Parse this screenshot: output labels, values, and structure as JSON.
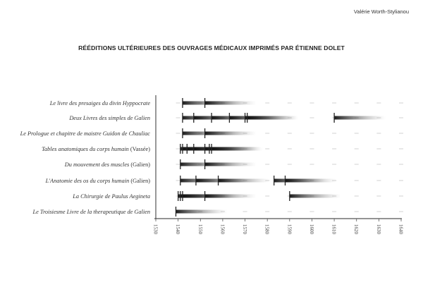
{
  "header": {
    "author": "Valérie Worth-Stylianou"
  },
  "chart_data": {
    "type": "timeline",
    "title": "RÉÉDITIONS ULTÉRIEURES DES OUVRAGES MÉDICAUX IMPRIMÉS PAR ÉTIENNE DOLET",
    "xlim": [
      1530,
      1640
    ],
    "x_ticks": [
      1530,
      1540,
      1550,
      1560,
      1570,
      1580,
      1590,
      1600,
      1610,
      1620,
      1630,
      1640
    ],
    "grid": "dashed row guides at each decade",
    "colors": {
      "mark": "#222222",
      "fade": "#ffffff",
      "guide": "#d0d0d0",
      "axis": "#555555"
    },
    "rows": [
      {
        "title": "Le livre des presaiges du divin Hyppocrate",
        "note": "",
        "editions": [
          1542,
          1552
        ]
      },
      {
        "title": "Deux Livres des simples de Galien",
        "note": "",
        "editions": [
          1542,
          1547,
          1555,
          1563,
          1570,
          1571,
          1610
        ]
      },
      {
        "title": "Le Prologue et chapitre de maistre Guidon de Chauliac",
        "note": "",
        "editions": [
          1542,
          1552
        ]
      },
      {
        "title": "Tables anatomiques du corps humain",
        "note": "(Vassée)",
        "editions": [
          1541,
          1542,
          1544,
          1547,
          1552,
          1554,
          1555
        ]
      },
      {
        "title": "Du mouvement des muscles",
        "note": "(Galien)",
        "editions": [
          1541,
          1552
        ]
      },
      {
        "title": "L'Anatomie des os du corps humain",
        "note": "(Galien)",
        "editions": [
          1541,
          1548,
          1558,
          1583,
          1588
        ]
      },
      {
        "title": "La Chirurgie de Paulus Aegineta",
        "note": "",
        "editions": [
          1540,
          1541,
          1542,
          1552,
          1590
        ]
      },
      {
        "title": "Le Troisiesme Livre de la therapeutique de Galien",
        "note": "",
        "editions": [
          1539
        ]
      }
    ]
  }
}
